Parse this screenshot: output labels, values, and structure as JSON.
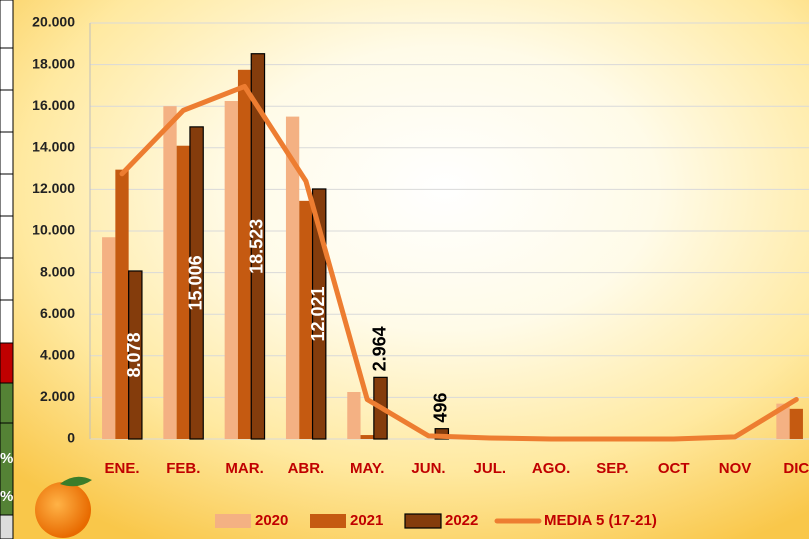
{
  "chart_data": {
    "type": "bar",
    "categories": [
      "ENE.",
      "FEB.",
      "MAR.",
      "ABR.",
      "MAY.",
      "JUN.",
      "JUL.",
      "AGO.",
      "SEP.",
      "OCT",
      "NOV",
      "DIC"
    ],
    "series": [
      {
        "name": "2020",
        "color": "#f4b183",
        "values": [
          9700,
          16000,
          16250,
          15500,
          2260,
          0,
          0,
          0,
          0,
          0,
          0,
          1700
        ]
      },
      {
        "name": "2021",
        "color": "#c55a11",
        "values": [
          12950,
          14100,
          17750,
          11450,
          190,
          0,
          0,
          0,
          0,
          0,
          0,
          1450
        ]
      },
      {
        "name": "2022",
        "color": "#843c0c",
        "values": [
          8078,
          15006,
          18523,
          12021,
          2964,
          496,
          null,
          null,
          null,
          null,
          null,
          null
        ],
        "value_labels": [
          "8.078",
          "15.006",
          "18.523",
          "12.021",
          "2.964",
          "496",
          null,
          null,
          null,
          null,
          null,
          null
        ]
      },
      {
        "name": "MEDIA 5 (17-21)",
        "type": "line",
        "color": "#ed7d31",
        "values": [
          12750,
          15800,
          16950,
          12400,
          1900,
          150,
          50,
          0,
          0,
          0,
          100,
          1900
        ]
      }
    ],
    "ylim": [
      0,
      20000
    ],
    "yticks": [
      0,
      {
        "value": 2000,
        "label": "2.000"
      },
      {
        "value": 4000,
        "label": "4.000"
      },
      {
        "value": 6000,
        "label": "6.000"
      },
      {
        "value": 8000,
        "label": "8.000"
      },
      {
        "value": 10000,
        "label": "10.000"
      },
      {
        "value": 12000,
        "label": "12.000"
      },
      {
        "value": 14000,
        "label": "14.000"
      },
      {
        "value": 16000,
        "label": "16.000"
      },
      {
        "value": 18000,
        "label": "18.000"
      },
      {
        "value": 20000,
        "label": "20.000"
      }
    ],
    "grid": true
  },
  "side_cells": [
    "%",
    "%"
  ]
}
